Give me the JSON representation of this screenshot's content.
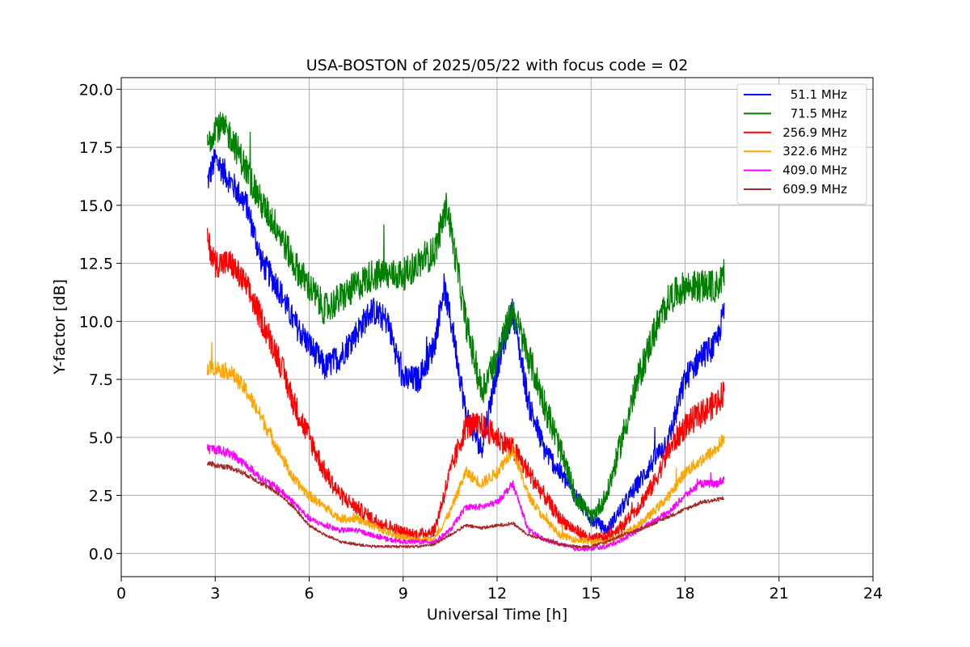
{
  "chart_data": {
    "type": "line",
    "title": "USA-BOSTON of 2025/05/22 with focus code = 02",
    "xlabel": "Universal Time [h]",
    "ylabel": "Y-factor [dB]",
    "xlim": [
      0,
      24
    ],
    "ylim": [
      -1,
      20.5
    ],
    "xticks": [
      0,
      3,
      6,
      9,
      12,
      15,
      18,
      21,
      24
    ],
    "xtick_labels": [
      "0",
      "3",
      "6",
      "9",
      "12",
      "15",
      "18",
      "21",
      "24"
    ],
    "yticks": [
      0.0,
      2.5,
      5.0,
      7.5,
      10.0,
      12.5,
      15.0,
      17.5,
      20.0
    ],
    "ytick_labels": [
      "0.0",
      "2.5",
      "5.0",
      "7.5",
      "10.0",
      "12.5",
      "15.0",
      "17.5",
      "20.0"
    ],
    "grid": true,
    "legend_position": "top-right",
    "series": [
      {
        "name": "51.1 MHz",
        "color": "#0000ff",
        "noise": 0.6,
        "x": [
          2.75,
          3.0,
          3.5,
          4.0,
          4.5,
          5.0,
          5.5,
          6.0,
          6.5,
          7.0,
          7.5,
          8.0,
          8.5,
          9.0,
          9.5,
          10.0,
          10.3,
          10.6,
          11.0,
          11.5,
          12.0,
          12.5,
          13.0,
          13.5,
          14.0,
          14.5,
          15.0,
          15.5,
          16.0,
          16.5,
          17.0,
          17.5,
          18.0,
          18.5,
          19.0,
          19.25
        ],
        "y": [
          16.0,
          17.0,
          16.0,
          15.0,
          12.5,
          11.5,
          10.0,
          9.0,
          8.0,
          8.5,
          9.5,
          10.5,
          10.0,
          7.5,
          7.5,
          9.0,
          11.5,
          9.5,
          6.0,
          4.5,
          8.0,
          10.5,
          6.5,
          4.5,
          3.5,
          2.5,
          1.5,
          1.0,
          2.0,
          3.0,
          4.0,
          5.0,
          7.5,
          8.5,
          9.0,
          10.5
        ]
      },
      {
        "name": "71.5 MHz",
        "color": "#008000",
        "noise": 0.7,
        "x": [
          2.75,
          3.0,
          3.5,
          4.0,
          4.5,
          5.0,
          5.5,
          6.0,
          6.5,
          7.0,
          7.5,
          8.0,
          8.5,
          9.0,
          9.5,
          10.0,
          10.4,
          10.7,
          11.0,
          11.5,
          12.0,
          12.5,
          13.0,
          13.5,
          14.0,
          14.5,
          15.0,
          15.5,
          16.0,
          16.5,
          17.0,
          17.5,
          18.0,
          18.5,
          19.0,
          19.25
        ],
        "y": [
          17.5,
          18.5,
          18.0,
          16.5,
          15.0,
          14.0,
          12.5,
          11.5,
          10.5,
          11.0,
          11.5,
          12.0,
          12.0,
          12.0,
          12.5,
          13.0,
          15.0,
          12.5,
          10.0,
          7.0,
          8.5,
          10.5,
          8.5,
          6.5,
          4.5,
          2.5,
          1.5,
          2.5,
          5.0,
          7.5,
          9.5,
          11.0,
          11.5,
          11.5,
          11.5,
          12.0
        ]
      },
      {
        "name": "256.9 MHz",
        "color": "#ff0000",
        "noise": 0.6,
        "x": [
          2.75,
          3.0,
          3.5,
          4.0,
          4.5,
          5.0,
          5.5,
          6.0,
          6.5,
          7.0,
          7.5,
          8.0,
          8.5,
          9.0,
          9.5,
          10.0,
          10.5,
          11.0,
          11.5,
          12.0,
          12.5,
          13.0,
          13.5,
          14.0,
          14.5,
          15.0,
          15.5,
          16.0,
          16.5,
          17.0,
          17.5,
          18.0,
          18.5,
          19.0,
          19.25
        ],
        "y": [
          13.5,
          12.5,
          12.5,
          11.5,
          10.0,
          8.5,
          6.5,
          5.0,
          3.5,
          2.5,
          2.0,
          1.5,
          1.2,
          0.9,
          0.8,
          1.0,
          3.5,
          5.5,
          5.5,
          5.0,
          4.5,
          3.5,
          2.5,
          1.5,
          1.0,
          0.6,
          0.7,
          1.2,
          2.0,
          3.0,
          4.5,
          5.5,
          6.0,
          6.5,
          7.0
        ]
      },
      {
        "name": "322.6 MHz",
        "color": "#ffa500",
        "noise": 0.35,
        "x": [
          2.75,
          3.0,
          3.5,
          4.0,
          4.5,
          5.0,
          5.5,
          6.0,
          6.5,
          7.0,
          7.5,
          8.0,
          8.5,
          9.0,
          9.5,
          10.0,
          10.5,
          11.0,
          11.5,
          12.0,
          12.5,
          13.0,
          13.5,
          14.0,
          14.5,
          15.0,
          15.5,
          16.0,
          16.5,
          17.0,
          17.5,
          18.0,
          18.5,
          19.0,
          19.25
        ],
        "y": [
          8.0,
          8.0,
          7.8,
          7.0,
          5.8,
          4.5,
          3.2,
          2.5,
          2.0,
          1.5,
          1.5,
          1.2,
          0.9,
          0.7,
          0.6,
          0.6,
          1.8,
          3.5,
          3.0,
          3.5,
          4.5,
          2.5,
          1.5,
          0.8,
          0.6,
          0.5,
          0.5,
          0.8,
          1.2,
          1.8,
          2.5,
          3.5,
          4.0,
          4.5,
          5.0
        ]
      },
      {
        "name": "409.0 MHz",
        "color": "#ff00ff",
        "noise": 0.25,
        "x": [
          2.75,
          3.0,
          3.5,
          4.0,
          4.5,
          5.0,
          5.5,
          6.0,
          6.5,
          7.0,
          7.5,
          8.0,
          8.5,
          9.0,
          9.5,
          10.0,
          10.5,
          11.0,
          11.5,
          12.0,
          12.5,
          13.0,
          13.5,
          14.0,
          14.5,
          15.0,
          15.5,
          16.0,
          16.5,
          17.0,
          17.5,
          18.0,
          18.5,
          19.0,
          19.25
        ],
        "y": [
          4.5,
          4.5,
          4.3,
          3.8,
          3.2,
          2.8,
          2.2,
          1.5,
          1.2,
          1.0,
          1.0,
          0.8,
          0.6,
          0.5,
          0.5,
          0.5,
          1.0,
          2.0,
          2.0,
          2.2,
          3.0,
          1.0,
          0.6,
          0.4,
          0.2,
          0.2,
          0.3,
          0.6,
          1.0,
          1.4,
          1.8,
          2.5,
          3.0,
          3.0,
          3.2
        ]
      },
      {
        "name": "609.9 MHz",
        "color": "#a52a2a",
        "noise": 0.15,
        "x": [
          2.75,
          3.0,
          3.5,
          4.0,
          4.5,
          5.0,
          5.5,
          6.0,
          6.5,
          7.0,
          7.5,
          8.0,
          8.5,
          9.0,
          9.5,
          10.0,
          10.5,
          11.0,
          11.5,
          12.0,
          12.5,
          13.0,
          13.5,
          14.0,
          14.5,
          15.0,
          15.5,
          16.0,
          16.5,
          17.0,
          17.5,
          18.0,
          18.5,
          19.0,
          19.25
        ],
        "y": [
          3.9,
          3.8,
          3.7,
          3.4,
          3.0,
          2.6,
          2.0,
          1.2,
          0.8,
          0.5,
          0.4,
          0.3,
          0.3,
          0.3,
          0.3,
          0.4,
          0.8,
          1.2,
          1.1,
          1.2,
          1.3,
          0.8,
          0.6,
          0.4,
          0.3,
          0.3,
          0.5,
          0.8,
          1.0,
          1.3,
          1.6,
          1.9,
          2.2,
          2.3,
          2.4
        ]
      }
    ]
  }
}
